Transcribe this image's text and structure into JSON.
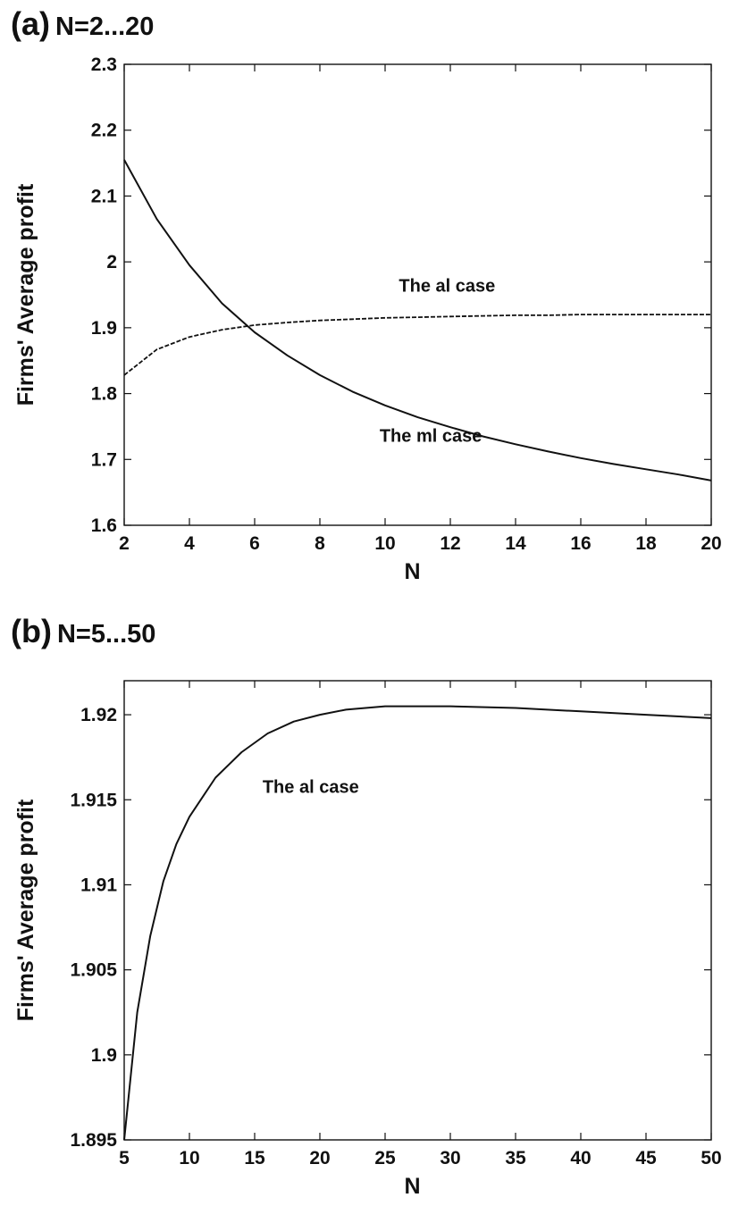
{
  "chart_data": [
    {
      "type": "line",
      "panel_label": "(a)",
      "title": "N=2...20",
      "xlabel": "N",
      "ylabel": "Firms' Average profit",
      "xlim": [
        2,
        20
      ],
      "ylim": [
        1.6,
        2.3
      ],
      "xticks": [
        2,
        4,
        6,
        8,
        10,
        12,
        14,
        16,
        18,
        20
      ],
      "yticks": [
        1.6,
        1.7,
        1.8,
        1.9,
        2,
        2.1,
        2.2,
        2.3
      ],
      "ytick_labels": [
        "1.6",
        "1.7",
        "1.8",
        "1.9",
        "2",
        "2.1",
        "2.2",
        "2.3"
      ],
      "grid": false,
      "series": [
        {
          "name": "The ml case",
          "style": "solid",
          "x": [
            2,
            3,
            4,
            5,
            6,
            7,
            8,
            9,
            10,
            11,
            12,
            13,
            14,
            15,
            16,
            17,
            18,
            19,
            20
          ],
          "y": [
            2.155,
            2.065,
            1.995,
            1.937,
            1.893,
            1.858,
            1.828,
            1.803,
            1.782,
            1.764,
            1.749,
            1.735,
            1.723,
            1.712,
            1.702,
            1.693,
            1.685,
            1.677,
            1.668
          ]
        },
        {
          "name": "The al case",
          "style": "dashed",
          "x": [
            2,
            3,
            4,
            5,
            6,
            7,
            8,
            9,
            10,
            11,
            12,
            13,
            14,
            15,
            16,
            17,
            18,
            19,
            20
          ],
          "y": [
            1.828,
            1.867,
            1.886,
            1.897,
            1.904,
            1.908,
            1.911,
            1.913,
            1.915,
            1.916,
            1.917,
            1.918,
            1.919,
            1.919,
            1.92,
            1.92,
            1.92,
            1.92,
            1.92
          ]
        }
      ],
      "annotations": [
        {
          "text": "The al case",
          "x": 11.9,
          "y": 1.955
        },
        {
          "text": "The ml case",
          "x": 11.4,
          "y": 1.727
        }
      ]
    },
    {
      "type": "line",
      "panel_label": "(b)",
      "title": "N=5...50",
      "xlabel": "N",
      "ylabel": "Firms' Average profit",
      "xlim": [
        5,
        50
      ],
      "ylim": [
        1.895,
        1.922
      ],
      "xticks": [
        5,
        10,
        15,
        20,
        25,
        30,
        35,
        40,
        45,
        50
      ],
      "yticks": [
        1.895,
        1.9,
        1.905,
        1.91,
        1.915,
        1.92
      ],
      "ytick_labels": [
        "1.895",
        "1.9",
        "1.905",
        "1.91",
        "1.915",
        "1.92"
      ],
      "grid": false,
      "series": [
        {
          "name": "The al case",
          "style": "solid",
          "x": [
            5,
            6,
            7,
            8,
            9,
            10,
            12,
            14,
            16,
            18,
            20,
            22,
            25,
            28,
            30,
            35,
            40,
            45,
            50
          ],
          "y": [
            1.895,
            1.9025,
            1.907,
            1.9102,
            1.9124,
            1.914,
            1.9163,
            1.9178,
            1.9189,
            1.9196,
            1.92,
            1.9203,
            1.9205,
            1.9205,
            1.9205,
            1.9204,
            1.9202,
            1.92,
            1.9198
          ]
        }
      ],
      "annotations": [
        {
          "text": "The al case",
          "x": 19.3,
          "y": 1.9154
        }
      ]
    }
  ]
}
